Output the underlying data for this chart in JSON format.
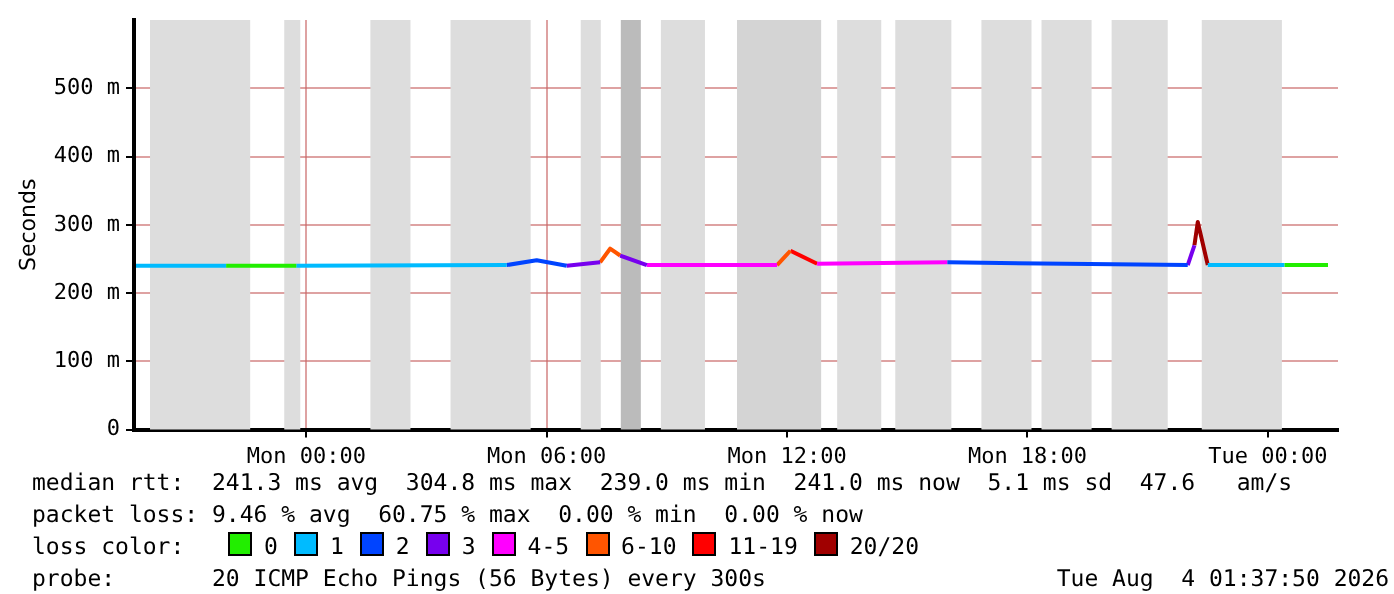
{
  "chart_data": {
    "type": "line",
    "ylabel": "Seconds",
    "xlim": [
      "2026-08-02T19:42",
      "2026-08-04T01:45"
    ],
    "xticks": [
      {
        "value": "2026-08-03T00:00",
        "label": "Mon 00:00"
      },
      {
        "value": "2026-08-03T06:00",
        "label": "Mon 06:00"
      },
      {
        "value": "2026-08-03T12:00",
        "label": "Mon 12:00"
      },
      {
        "value": "2026-08-03T18:00",
        "label": "Mon 18:00"
      },
      {
        "value": "2026-08-04T00:00",
        "label": "Tue 00:00"
      }
    ],
    "ylim": [
      0,
      600
    ],
    "yticks": [
      0,
      {
        "value": 100,
        "label": "100 m"
      },
      {
        "value": 200,
        "label": "200 m"
      },
      {
        "value": 300,
        "label": "300 m"
      },
      {
        "value": 400,
        "label": "400 m"
      },
      {
        "value": 500,
        "label": "500 m"
      }
    ],
    "grid": true,
    "legend": "bottom",
    "legend_title": "loss color:",
    "marker": "none",
    "line_style": "solid",
    "series": [
      {
        "name": "0",
        "color": "#22ee00",
        "x": [
          "2026-08-02T22:00",
          "2026-08-02T23:45",
          null,
          "2026-08-04T00:25",
          "2026-08-04T01:30"
        ],
        "values": [
          240,
          240,
          null,
          241,
          241
        ]
      },
      {
        "name": "1",
        "color": "#00bbff",
        "x": [
          "2026-08-02T19:45",
          "2026-08-02T22:00",
          null,
          "2026-08-02T23:45",
          "2026-08-03T05:00",
          null,
          "2026-08-03T22:30",
          "2026-08-04T00:25"
        ],
        "values": [
          240,
          240,
          null,
          240,
          241,
          null,
          241,
          241
        ]
      },
      {
        "name": "2",
        "color": "#0044ff",
        "x": [
          "2026-08-03T05:00",
          "2026-08-03T05:45",
          "2026-08-03T06:30",
          null,
          "2026-08-03T16:00",
          "2026-08-03T22:00"
        ],
        "values": [
          241,
          248,
          240,
          null,
          245,
          241
        ]
      },
      {
        "name": "3",
        "color": "#7700ee",
        "x": [
          "2026-08-03T06:30",
          "2026-08-03T07:20",
          null,
          "2026-08-03T07:50",
          "2026-08-03T08:30",
          null,
          "2026-08-03T22:00",
          "2026-08-03T22:10"
        ],
        "values": [
          240,
          245,
          null,
          255,
          241,
          null,
          241,
          270
        ]
      },
      {
        "name": "4-5",
        "color": "#ff00ff",
        "x": [
          "2026-08-03T08:30",
          "2026-08-03T11:45",
          null,
          "2026-08-03T12:45",
          "2026-08-03T16:00"
        ],
        "values": [
          241,
          241,
          null,
          243,
          245
        ]
      },
      {
        "name": "6-10",
        "color": "#ff5500",
        "x": [
          "2026-08-03T07:20",
          "2026-08-03T07:35",
          "2026-08-03T07:50",
          null,
          "2026-08-03T11:45",
          "2026-08-03T12:05"
        ],
        "values": [
          245,
          265,
          255,
          null,
          241,
          262
        ]
      },
      {
        "name": "11-19",
        "color": "#ff0000",
        "x": [
          "2026-08-03T12:05",
          "2026-08-03T12:45"
        ],
        "values": [
          262,
          243
        ]
      },
      {
        "name": "20/20",
        "color": "#a00000",
        "x": [
          "2026-08-03T22:10",
          "2026-08-03T22:15",
          "2026-08-03T22:30"
        ],
        "values": [
          270,
          304,
          241
        ]
      }
    ],
    "bands": [
      {
        "axis": "x",
        "from": "2026-08-02T20:06",
        "to": "2026-08-02T22:36",
        "color": "#dddddd"
      },
      {
        "axis": "x",
        "from": "2026-08-02T23:27",
        "to": "2026-08-02T23:51",
        "color": "#dddddd"
      },
      {
        "axis": "x",
        "from": "2026-08-03T01:36",
        "to": "2026-08-03T02:36",
        "color": "#dddddd"
      },
      {
        "axis": "x",
        "from": "2026-08-03T03:36",
        "to": "2026-08-03T05:36",
        "color": "#dddddd"
      },
      {
        "axis": "x",
        "from": "2026-08-03T06:51",
        "to": "2026-08-03T07:21",
        "color": "#dddddd"
      },
      {
        "axis": "x",
        "from": "2026-08-03T07:51",
        "to": "2026-08-03T08:21",
        "color": "#bbbbbb"
      },
      {
        "axis": "x",
        "from": "2026-08-03T08:51",
        "to": "2026-08-03T09:57",
        "color": "#dddddd"
      },
      {
        "axis": "x",
        "from": "2026-08-03T10:45",
        "to": "2026-08-03T12:51",
        "color": "#d4d4d4"
      },
      {
        "axis": "x",
        "from": "2026-08-03T13:15",
        "to": "2026-08-03T14:21",
        "color": "#dddddd"
      },
      {
        "axis": "x",
        "from": "2026-08-03T14:42",
        "to": "2026-08-03T16:06",
        "color": "#dddddd"
      },
      {
        "axis": "x",
        "from": "2026-08-03T16:51",
        "to": "2026-08-03T18:06",
        "color": "#dddddd"
      },
      {
        "axis": "x",
        "from": "2026-08-03T18:21",
        "to": "2026-08-03T19:36",
        "color": "#dddddd"
      },
      {
        "axis": "x",
        "from": "2026-08-03T20:06",
        "to": "2026-08-03T21:30",
        "color": "#dddddd"
      },
      {
        "axis": "x",
        "from": "2026-08-03T22:21",
        "to": "2026-08-04T00:21",
        "color": "#dddddd"
      }
    ],
    "annotations": [
      "median rtt:  241.3 ms avg  304.8 ms max  239.0 ms min  241.0 ms now  5.1 ms sd  47.6   am/s",
      "packet loss: 9.46 % avg  60.75 % max  0.00 % min  0.00 % now",
      "probe:       20 ICMP Echo Pings (56 Bytes) every 300s                     Tue Aug  4 01:37:50 2026"
    ]
  }
}
